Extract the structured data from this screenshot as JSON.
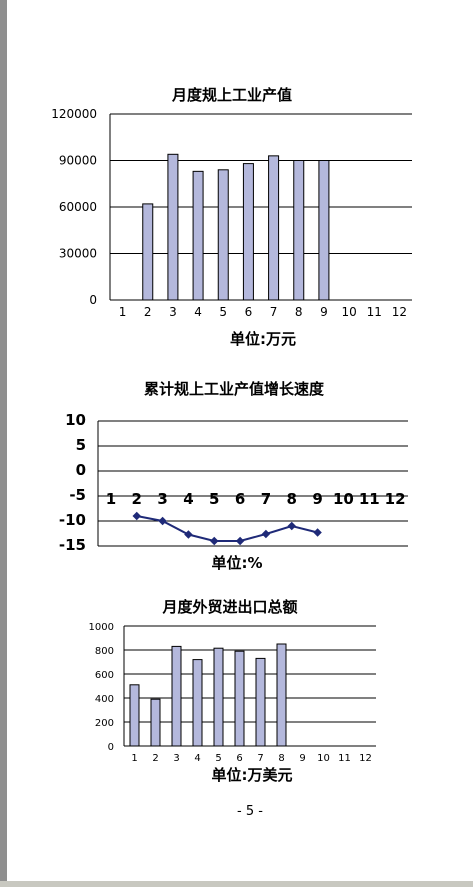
{
  "page_number": "- 5 -",
  "chart_data": [
    {
      "type": "bar",
      "title": "月度规上工业产值",
      "xlabel": "单位:万元",
      "categories": [
        "1",
        "2",
        "3",
        "4",
        "5",
        "6",
        "7",
        "8",
        "9",
        "10",
        "11",
        "12"
      ],
      "values": [
        null,
        62000,
        94000,
        83000,
        84000,
        88000,
        93000,
        90000,
        90000,
        null,
        null,
        null
      ],
      "yticks": [
        "0",
        "30000",
        "60000",
        "90000",
        "120000"
      ],
      "ylim": [
        0,
        120000
      ],
      "grid": true,
      "bar_color": "#b4b8dc"
    },
    {
      "type": "line",
      "title": "累计规上工业产值增长速度",
      "xlabel": "单位:%",
      "categories": [
        "1",
        "2",
        "3",
        "4",
        "5",
        "6",
        "7",
        "8",
        "9",
        "10",
        "11",
        "12"
      ],
      "values": [
        null,
        -9,
        -10,
        -12.7,
        -14,
        -14,
        -12.6,
        -11,
        -12.3,
        null,
        null,
        null
      ],
      "yticks": [
        "-15",
        "-10",
        "-5",
        "0",
        "5",
        "10"
      ],
      "ylim": [
        -15,
        10
      ],
      "grid": true,
      "line_color": "#1f2a78"
    },
    {
      "type": "bar",
      "title": "月度外贸进出口总额",
      "xlabel": "单位:万美元",
      "categories": [
        "1",
        "2",
        "3",
        "4",
        "5",
        "6",
        "7",
        "8",
        "9",
        "10",
        "11",
        "12"
      ],
      "values": [
        510,
        390,
        830,
        720,
        815,
        790,
        730,
        850,
        null,
        null,
        null,
        null
      ],
      "yticks": [
        "0",
        "200",
        "400",
        "600",
        "800",
        "1000"
      ],
      "ylim": [
        0,
        1000
      ],
      "grid": true,
      "bar_color": "#b4b8dc"
    }
  ]
}
